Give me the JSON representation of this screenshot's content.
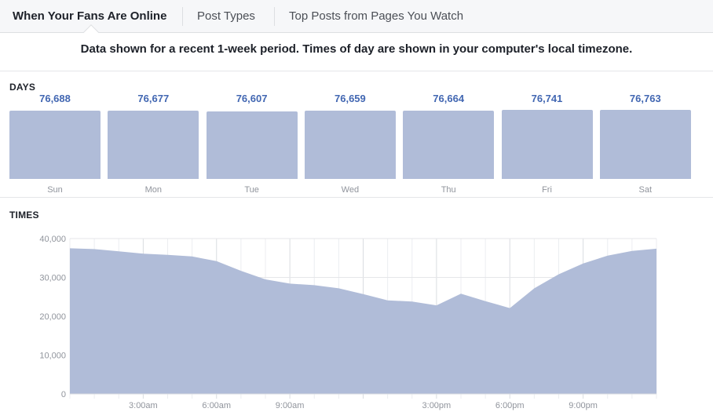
{
  "tabs": [
    {
      "label": "When Your Fans Are Online",
      "active": true
    },
    {
      "label": "Post Types",
      "active": false
    },
    {
      "label": "Top Posts from Pages You Watch",
      "active": false
    }
  ],
  "notice": "Data shown for a recent 1-week period. Times of day are shown in your computer's local timezone.",
  "days_section": {
    "label": "DAYS"
  },
  "times_section": {
    "label": "TIMES"
  },
  "colors": {
    "bar": "#b0bcd8",
    "value": "#4267b2",
    "area": "#b0bcd8"
  },
  "chart_data": [
    {
      "type": "bar",
      "categories": [
        "Sun",
        "Mon",
        "Tue",
        "Wed",
        "Thu",
        "Fri",
        "Sat"
      ],
      "values": [
        76688,
        76677,
        76607,
        76659,
        76664,
        76741,
        76763
      ],
      "value_labels": [
        "76,688",
        "76,677",
        "76,607",
        "76,659",
        "76,664",
        "76,741",
        "76,763"
      ]
    },
    {
      "type": "area",
      "x": [
        0,
        1,
        2,
        3,
        4,
        5,
        6,
        7,
        8,
        9,
        10,
        11,
        12,
        13,
        14,
        15,
        16,
        17,
        18,
        19,
        20,
        21,
        22,
        23,
        24
      ],
      "values": [
        37500,
        37300,
        36700,
        36100,
        35800,
        35400,
        34200,
        31700,
        29500,
        28400,
        28000,
        27200,
        25700,
        24100,
        23800,
        22800,
        25800,
        23900,
        22100,
        27200,
        30800,
        33600,
        35600,
        36800,
        37400
      ],
      "ylim": [
        0,
        40000
      ],
      "yticks": [
        0,
        10000,
        20000,
        30000,
        40000
      ],
      "ytick_labels": [
        "0",
        "10,000",
        "20,000",
        "30,000",
        "40,000"
      ],
      "xticks": [
        3,
        6,
        9,
        15,
        18,
        21
      ],
      "xtick_labels": [
        "3:00am",
        "6:00am",
        "9:00am",
        "3:00pm",
        "6:00pm",
        "9:00pm"
      ],
      "grid": true
    }
  ]
}
